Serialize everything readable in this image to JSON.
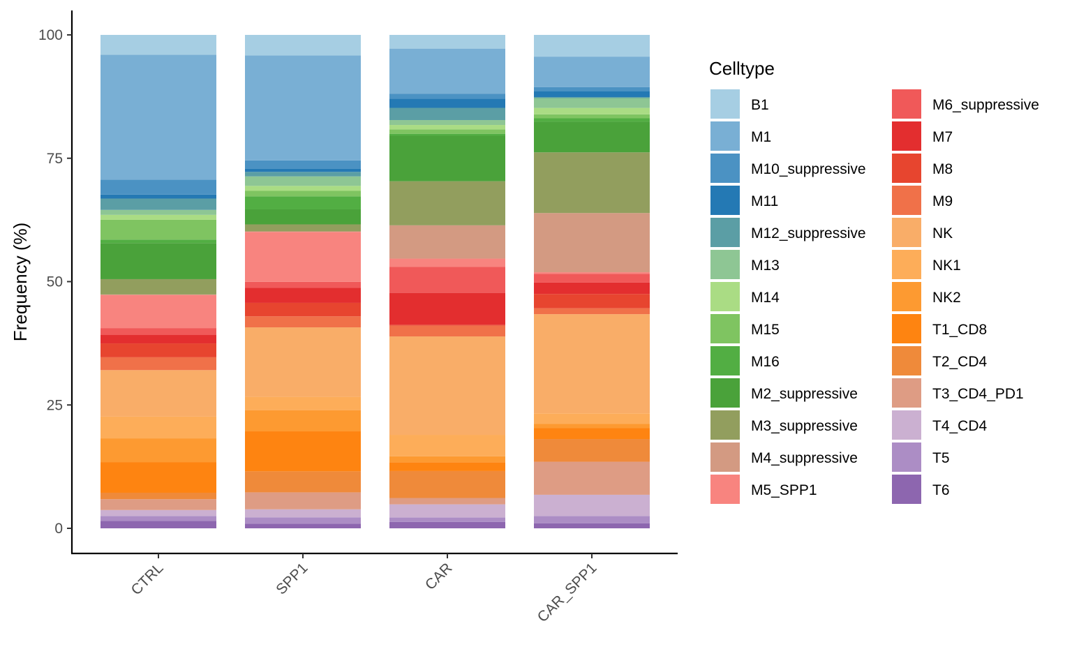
{
  "chart_data": {
    "type": "bar",
    "stacked": true,
    "ylabel": "Frequency (%)",
    "xlabel": "",
    "ylim": [
      0,
      100
    ],
    "yticks": [
      0,
      25,
      50,
      75,
      100
    ],
    "grid": false,
    "legend": {
      "title": "Celltype",
      "placement": "right",
      "columns": 2
    },
    "categories": [
      "CTRL",
      "SPP1",
      "CAR",
      "CAR_SPP1"
    ],
    "series": [
      {
        "name": "B1",
        "color": "#A6CEE3",
        "values": [
          4.0,
          4.1,
          2.8,
          4.4
        ]
      },
      {
        "name": "M1",
        "color": "#79AFD4",
        "values": [
          25.3,
          21.0,
          9.2,
          6.2
        ]
      },
      {
        "name": "M10_suppressive",
        "color": "#4B92C3",
        "values": [
          3.0,
          1.7,
          1.0,
          0.8
        ]
      },
      {
        "name": "M11",
        "color": "#2479B4",
        "values": [
          0.8,
          0.6,
          1.9,
          1.2
        ]
      },
      {
        "name": "M12_suppressive",
        "color": "#5B9EA5",
        "values": [
          2.3,
          0.9,
          2.5,
          0.2
        ]
      },
      {
        "name": "M13",
        "color": "#8EC694",
        "values": [
          1.0,
          1.9,
          1.0,
          2.0
        ]
      },
      {
        "name": "M14",
        "color": "#AADC84",
        "values": [
          1.0,
          1.0,
          0.9,
          1.3
        ]
      },
      {
        "name": "M15",
        "color": "#7FC461",
        "values": [
          4.0,
          1.1,
          0.9,
          0.8
        ]
      },
      {
        "name": "M16",
        "color": "#52AE43",
        "values": [
          0.7,
          2.6,
          0.4,
          0.7
        ]
      },
      {
        "name": "M2_suppressive",
        "color": "#4AA23A",
        "values": [
          7.3,
          3.0,
          9.3,
          6.2
        ]
      },
      {
        "name": "M3_suppressive",
        "color": "#929E5E",
        "values": [
          3.1,
          1.4,
          9.0,
          12.3
        ]
      },
      {
        "name": "M4_suppressive",
        "color": "#D39A82",
        "values": [
          0.1,
          0.1,
          6.8,
          12.0
        ]
      },
      {
        "name": "M5_SPP1",
        "color": "#F8847F",
        "values": [
          6.7,
          10.0,
          1.7,
          0.3
        ]
      },
      {
        "name": "M6_suppressive",
        "color": "#F05959",
        "values": [
          1.4,
          1.2,
          5.3,
          1.8
        ]
      },
      {
        "name": "M7",
        "color": "#E32E2F",
        "values": [
          1.7,
          3.0,
          6.5,
          2.3
        ]
      },
      {
        "name": "M8",
        "color": "#E7452F",
        "values": [
          2.8,
          2.7,
          0.2,
          2.9
        ]
      },
      {
        "name": "M9",
        "color": "#F07149",
        "values": [
          2.6,
          2.2,
          2.2,
          1.2
        ]
      },
      {
        "name": "NK",
        "color": "#F9AD68",
        "values": [
          9.4,
          13.9,
          20.1,
          20.1
        ]
      },
      {
        "name": "NK1",
        "color": "#FDAD59",
        "values": [
          4.4,
          2.7,
          4.4,
          2.1
        ]
      },
      {
        "name": "NK2",
        "color": "#FD9A31",
        "values": [
          4.8,
          4.2,
          1.2,
          0.9
        ]
      },
      {
        "name": "T1_CD8",
        "color": "#FE8411",
        "values": [
          6.2,
          8.0,
          1.8,
          2.2
        ]
      },
      {
        "name": "T2_CD4",
        "color": "#EF8A3A",
        "values": [
          1.3,
          4.2,
          5.5,
          4.6
        ]
      },
      {
        "name": "T3_CD4_PD1",
        "color": "#DE9C84",
        "values": [
          2.2,
          3.4,
          1.3,
          6.7
        ]
      },
      {
        "name": "T4_CD4",
        "color": "#CBB0D1",
        "values": [
          1.2,
          1.6,
          2.7,
          4.3
        ]
      },
      {
        "name": "T5",
        "color": "#AC8DC5",
        "values": [
          1.0,
          1.3,
          0.9,
          1.5
        ]
      },
      {
        "name": "T6",
        "color": "#8D66AF",
        "values": [
          1.5,
          0.9,
          1.3,
          1.0
        ]
      }
    ]
  }
}
